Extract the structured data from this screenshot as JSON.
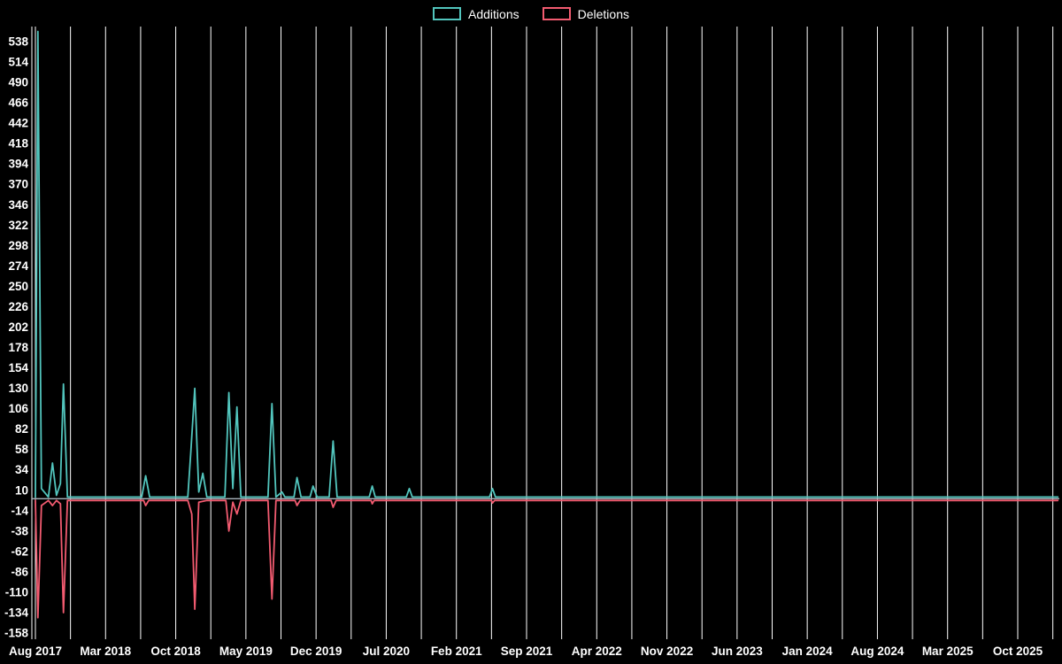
{
  "chart_data": {
    "type": "line",
    "title": "",
    "legend_position": "top-center",
    "background_color": "#000000",
    "grid_color": "#ffffff",
    "grid_vertical_only": true,
    "zero_line_color": "#a9b3bb",
    "x_axis": {
      "label": "",
      "tick_labels": [
        "Aug 2017",
        "Mar 2018",
        "Oct 2018",
        "May 2019",
        "Dec 2019",
        "Jul 2020",
        "Feb 2021",
        "Sep 2021",
        "Apr 2022",
        "Nov 2022",
        "Jun 2023",
        "Jan 2024",
        "Aug 2024",
        "Mar 2025",
        "Oct 2025"
      ],
      "tick_interval_months": 7,
      "months_total": 98,
      "gridline_interval_months": 3.5
    },
    "y_axis": {
      "label": "",
      "min": -158,
      "max": 538,
      "step": 24,
      "tick_labels": [
        "538",
        "514",
        "490",
        "466",
        "442",
        "418",
        "394",
        "370",
        "346",
        "322",
        "298",
        "274",
        "250",
        "226",
        "202",
        "178",
        "154",
        "130",
        "106",
        "82",
        "58",
        "34",
        "10",
        "-14",
        "-38",
        "-62",
        "-86",
        "-110",
        "-134",
        "-158"
      ]
    },
    "series": [
      {
        "name": "Additions",
        "color": "#52c5bd",
        "points": [
          [
            0,
            2
          ],
          [
            0.25,
            550
          ],
          [
            0.6,
            12
          ],
          [
            1.3,
            2
          ],
          [
            1.7,
            42
          ],
          [
            2.1,
            4
          ],
          [
            2.5,
            18
          ],
          [
            2.8,
            135
          ],
          [
            3.2,
            2
          ],
          [
            10.6,
            2
          ],
          [
            11,
            27
          ],
          [
            11.4,
            2
          ],
          [
            15.2,
            2
          ],
          [
            15.5,
            55
          ],
          [
            15.9,
            130
          ],
          [
            16.3,
            8
          ],
          [
            16.7,
            30
          ],
          [
            17.1,
            2
          ],
          [
            18.9,
            2
          ],
          [
            19.3,
            125
          ],
          [
            19.7,
            12
          ],
          [
            20.1,
            108
          ],
          [
            20.5,
            2
          ],
          [
            23.2,
            2
          ],
          [
            23.6,
            112
          ],
          [
            24,
            2
          ],
          [
            24.6,
            8
          ],
          [
            24.9,
            2
          ],
          [
            25.8,
            2
          ],
          [
            26.1,
            25
          ],
          [
            26.5,
            2
          ],
          [
            27.4,
            2
          ],
          [
            27.7,
            15
          ],
          [
            28.1,
            2
          ],
          [
            29.3,
            2
          ],
          [
            29.7,
            68
          ],
          [
            30.1,
            2
          ],
          [
            33.3,
            2
          ],
          [
            33.6,
            15
          ],
          [
            33.9,
            2
          ],
          [
            37,
            2
          ],
          [
            37.3,
            12
          ],
          [
            37.6,
            2
          ],
          [
            45.3,
            2
          ],
          [
            45.6,
            12
          ],
          [
            45.9,
            2
          ],
          [
            102,
            2
          ]
        ]
      },
      {
        "name": "Deletions",
        "color": "#f25b70",
        "points": [
          [
            0,
            -2
          ],
          [
            0.25,
            -140
          ],
          [
            0.6,
            -8
          ],
          [
            1.3,
            -2
          ],
          [
            1.7,
            -8
          ],
          [
            2.1,
            -2
          ],
          [
            2.5,
            -6
          ],
          [
            2.8,
            -134
          ],
          [
            3.2,
            -2
          ],
          [
            10.8,
            -2
          ],
          [
            11,
            -8
          ],
          [
            11.3,
            -2
          ],
          [
            15.2,
            -2
          ],
          [
            15.6,
            -18
          ],
          [
            15.9,
            -130
          ],
          [
            16.3,
            -4
          ],
          [
            17.1,
            -2
          ],
          [
            19,
            -2
          ],
          [
            19.3,
            -38
          ],
          [
            19.7,
            -4
          ],
          [
            20.1,
            -18
          ],
          [
            20.5,
            -2
          ],
          [
            23.2,
            -2
          ],
          [
            23.6,
            -118
          ],
          [
            24,
            -2
          ],
          [
            25.9,
            -2
          ],
          [
            26.1,
            -8
          ],
          [
            26.4,
            -2
          ],
          [
            29.5,
            -2
          ],
          [
            29.7,
            -10
          ],
          [
            30,
            -2
          ],
          [
            33.5,
            -2
          ],
          [
            33.6,
            -6
          ],
          [
            33.8,
            -2
          ],
          [
            45.5,
            -2
          ],
          [
            45.6,
            -5
          ],
          [
            45.8,
            -2
          ],
          [
            102,
            -2
          ]
        ]
      }
    ]
  }
}
